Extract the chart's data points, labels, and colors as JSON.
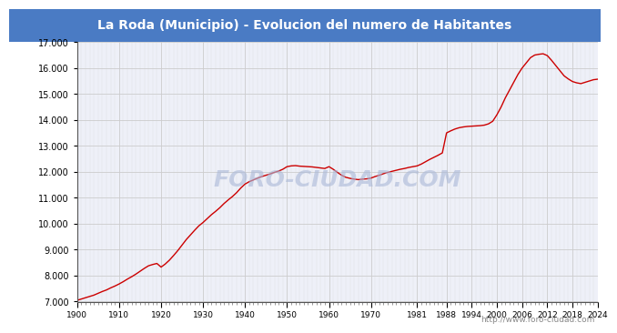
{
  "title": "La Roda (Municipio) - Evolucion del numero de Habitantes",
  "title_bg_color": "#4a7bc4",
  "title_text_color": "#ffffff",
  "line_color": "#cc0000",
  "bg_color": "#ffffff",
  "plot_bg_color": "#eef0f8",
  "grid_color": "#cccccc",
  "footer_text": "http://www.foro-ciudad.com",
  "watermark": "FORO-CIUDAD.COM",
  "ylim": [
    7000,
    17000
  ],
  "yticks": [
    7000,
    8000,
    9000,
    10000,
    11000,
    12000,
    13000,
    14000,
    15000,
    16000,
    17000
  ],
  "xticks": [
    1900,
    1910,
    1920,
    1930,
    1940,
    1950,
    1960,
    1970,
    1981,
    1988,
    1994,
    2000,
    2006,
    2012,
    2018,
    2024
  ],
  "xlim": [
    1900,
    2024
  ],
  "data": [
    [
      1900,
      7050
    ],
    [
      1901,
      7100
    ],
    [
      1902,
      7150
    ],
    [
      1903,
      7200
    ],
    [
      1904,
      7250
    ],
    [
      1905,
      7320
    ],
    [
      1906,
      7390
    ],
    [
      1907,
      7450
    ],
    [
      1908,
      7530
    ],
    [
      1909,
      7600
    ],
    [
      1910,
      7680
    ],
    [
      1911,
      7770
    ],
    [
      1912,
      7870
    ],
    [
      1913,
      7960
    ],
    [
      1914,
      8060
    ],
    [
      1915,
      8170
    ],
    [
      1916,
      8280
    ],
    [
      1917,
      8380
    ],
    [
      1918,
      8430
    ],
    [
      1919,
      8470
    ],
    [
      1920,
      8330
    ],
    [
      1921,
      8450
    ],
    [
      1922,
      8600
    ],
    [
      1923,
      8780
    ],
    [
      1924,
      8970
    ],
    [
      1925,
      9180
    ],
    [
      1926,
      9390
    ],
    [
      1927,
      9570
    ],
    [
      1928,
      9750
    ],
    [
      1929,
      9920
    ],
    [
      1930,
      10050
    ],
    [
      1931,
      10200
    ],
    [
      1932,
      10350
    ],
    [
      1933,
      10480
    ],
    [
      1934,
      10620
    ],
    [
      1935,
      10780
    ],
    [
      1936,
      10920
    ],
    [
      1937,
      11050
    ],
    [
      1938,
      11200
    ],
    [
      1939,
      11380
    ],
    [
      1940,
      11530
    ],
    [
      1941,
      11620
    ],
    [
      1942,
      11690
    ],
    [
      1943,
      11760
    ],
    [
      1944,
      11820
    ],
    [
      1945,
      11870
    ],
    [
      1946,
      11920
    ],
    [
      1947,
      11980
    ],
    [
      1948,
      12030
    ],
    [
      1949,
      12100
    ],
    [
      1950,
      12200
    ],
    [
      1951,
      12230
    ],
    [
      1952,
      12240
    ],
    [
      1953,
      12220
    ],
    [
      1954,
      12210
    ],
    [
      1955,
      12200
    ],
    [
      1956,
      12190
    ],
    [
      1957,
      12170
    ],
    [
      1958,
      12150
    ],
    [
      1959,
      12130
    ],
    [
      1960,
      12200
    ],
    [
      1961,
      12100
    ],
    [
      1962,
      11980
    ],
    [
      1963,
      11870
    ],
    [
      1964,
      11790
    ],
    [
      1965,
      11750
    ],
    [
      1966,
      11720
    ],
    [
      1967,
      11700
    ],
    [
      1968,
      11720
    ],
    [
      1969,
      11730
    ],
    [
      1970,
      11760
    ],
    [
      1971,
      11820
    ],
    [
      1972,
      11870
    ],
    [
      1973,
      11930
    ],
    [
      1974,
      11980
    ],
    [
      1975,
      12020
    ],
    [
      1976,
      12060
    ],
    [
      1977,
      12100
    ],
    [
      1978,
      12130
    ],
    [
      1979,
      12170
    ],
    [
      1980,
      12200
    ],
    [
      1981,
      12230
    ],
    [
      1982,
      12300
    ],
    [
      1983,
      12390
    ],
    [
      1984,
      12480
    ],
    [
      1985,
      12560
    ],
    [
      1986,
      12640
    ],
    [
      1987,
      12730
    ],
    [
      1988,
      13500
    ],
    [
      1989,
      13580
    ],
    [
      1990,
      13650
    ],
    [
      1991,
      13700
    ],
    [
      1992,
      13730
    ],
    [
      1993,
      13750
    ],
    [
      1994,
      13760
    ],
    [
      1995,
      13770
    ],
    [
      1996,
      13780
    ],
    [
      1997,
      13800
    ],
    [
      1998,
      13850
    ],
    [
      1999,
      13950
    ],
    [
      2000,
      14200
    ],
    [
      2001,
      14500
    ],
    [
      2002,
      14850
    ],
    [
      2003,
      15150
    ],
    [
      2004,
      15450
    ],
    [
      2005,
      15750
    ],
    [
      2006,
      16000
    ],
    [
      2007,
      16200
    ],
    [
      2008,
      16400
    ],
    [
      2009,
      16500
    ],
    [
      2010,
      16530
    ],
    [
      2011,
      16550
    ],
    [
      2012,
      16480
    ],
    [
      2013,
      16300
    ],
    [
      2014,
      16100
    ],
    [
      2015,
      15900
    ],
    [
      2016,
      15700
    ],
    [
      2017,
      15580
    ],
    [
      2018,
      15480
    ],
    [
      2019,
      15430
    ],
    [
      2020,
      15400
    ],
    [
      2021,
      15450
    ],
    [
      2022,
      15500
    ],
    [
      2023,
      15550
    ],
    [
      2024,
      15570
    ]
  ]
}
